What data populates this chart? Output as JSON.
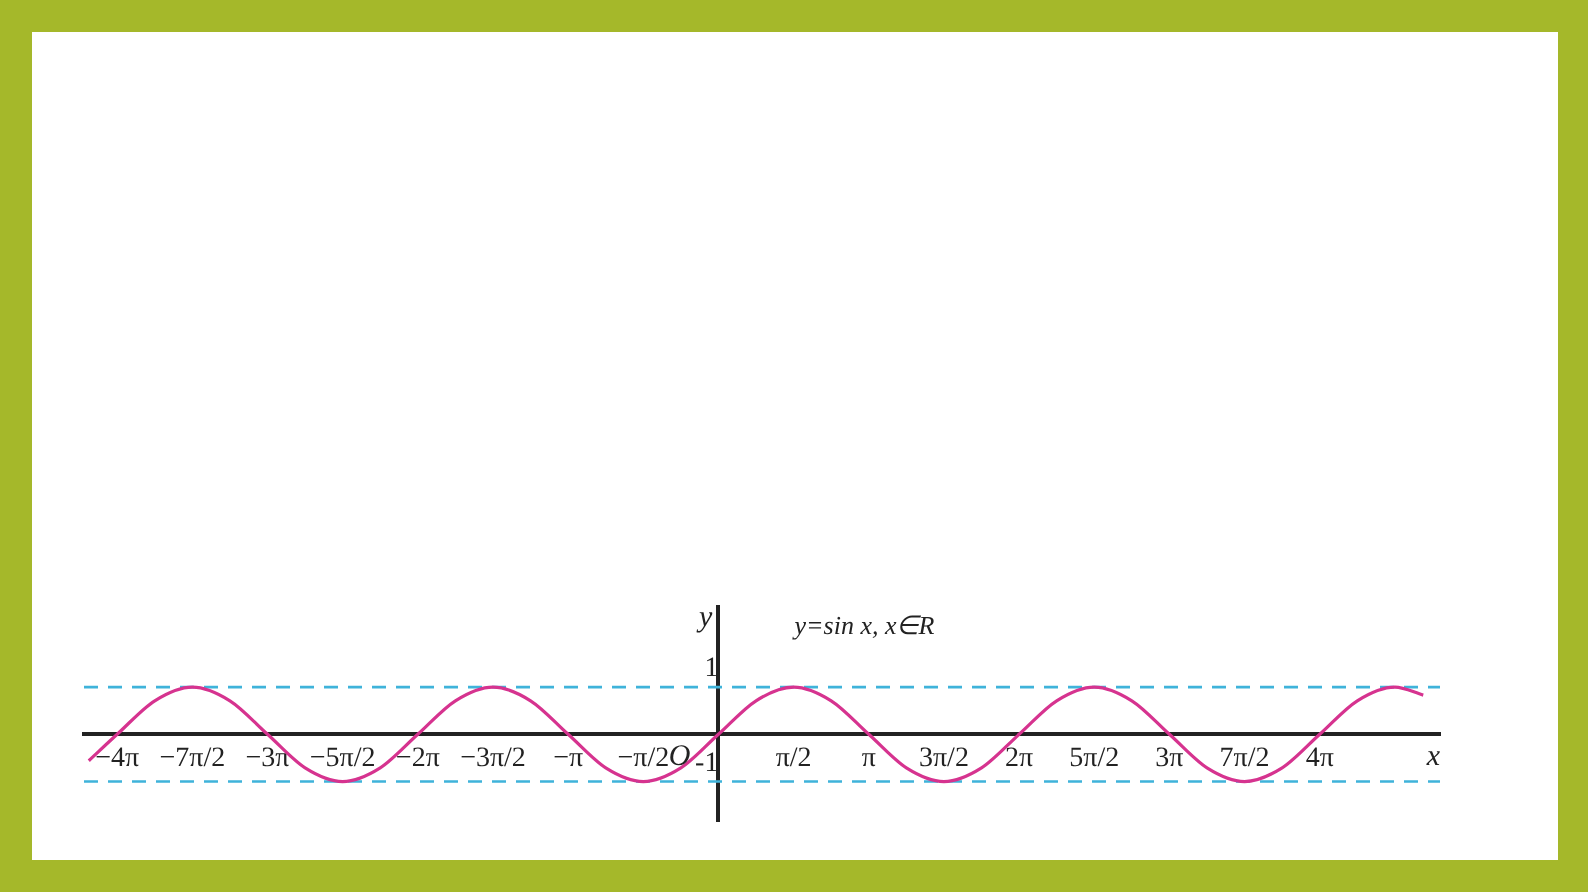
{
  "chart_data": {
    "type": "line",
    "xlabel": "x",
    "ylabel": "y",
    "annotations": [
      "y=sin x, x∈R",
      "O"
    ],
    "xlim": [
      -13.26,
      15.08
    ],
    "ylim": [
      -1.84,
      2.7
    ],
    "xticks": [
      {
        "value": -12.5664,
        "label": "−4π"
      },
      {
        "value": -10.9956,
        "label": "−7π/2"
      },
      {
        "value": -9.4248,
        "label": "−3π"
      },
      {
        "value": -7.854,
        "label": "−5π/2"
      },
      {
        "value": -6.2832,
        "label": "−2π"
      },
      {
        "value": -4.7124,
        "label": "−3π/2"
      },
      {
        "value": -3.1416,
        "label": "−π"
      },
      {
        "value": -1.5708,
        "label": "−π/2"
      },
      {
        "value": 1.5708,
        "label": "π/2"
      },
      {
        "value": 3.1416,
        "label": "π"
      },
      {
        "value": 4.7124,
        "label": "3π/2"
      },
      {
        "value": 6.2832,
        "label": "2π"
      },
      {
        "value": 7.854,
        "label": "5π/2"
      },
      {
        "value": 9.4248,
        "label": "3π"
      },
      {
        "value": 10.9956,
        "label": "7π/2"
      },
      {
        "value": 12.5664,
        "label": "4π"
      }
    ],
    "yticks": [
      1,
      -1
    ],
    "grid": false,
    "legend": false,
    "marker": "none",
    "line_style": "solid",
    "ref_lines": [
      {
        "axis": "y",
        "value": 1,
        "color": "#3fb3da",
        "line_style": "dashed"
      },
      {
        "axis": "y",
        "value": -1,
        "color": "#3fb3da",
        "line_style": "dashed"
      }
    ],
    "series": [
      {
        "color": "#d6338f",
        "x": [
          -13.16,
          -12.5664,
          -11.781,
          -10.9956,
          -10.2102,
          -9.4248,
          -8.6394,
          -7.854,
          -7.0686,
          -6.2832,
          -5.4978,
          -4.7124,
          -3.927,
          -3.1416,
          -2.3562,
          -1.5708,
          -0.7854,
          0,
          0.7854,
          1.5708,
          2.3562,
          3.1416,
          3.927,
          4.7124,
          5.4978,
          6.2832,
          7.0686,
          7.854,
          8.6394,
          9.4248,
          10.2102,
          10.9956,
          11.781,
          12.5664,
          13.3518,
          14.1372,
          14.73
        ],
        "values": [
          -0.56,
          0,
          0.71,
          1,
          0.71,
          0,
          -0.71,
          -1,
          -0.71,
          0,
          0.71,
          1,
          0.71,
          0,
          -0.71,
          -1,
          -0.71,
          0,
          0.71,
          1,
          0.71,
          0,
          -0.71,
          -1,
          -0.71,
          0,
          0.71,
          1,
          0.71,
          0,
          -0.71,
          -1,
          -0.71,
          0,
          0.71,
          1,
          0.83
        ]
      }
    ]
  }
}
